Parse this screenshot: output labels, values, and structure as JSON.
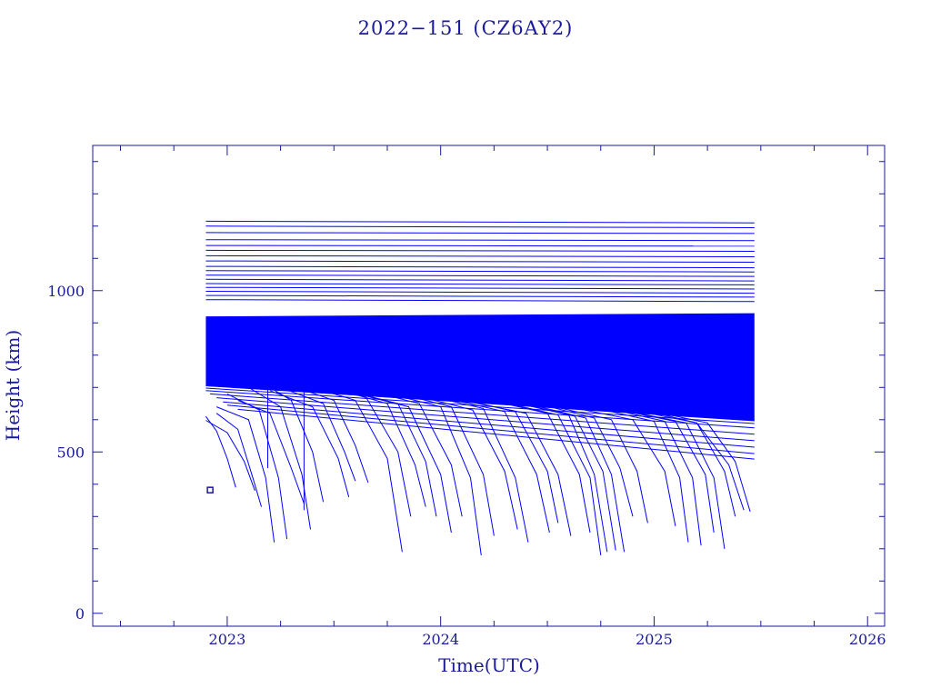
{
  "chart_data": {
    "type": "line",
    "title": "2022−151 (CZ6AY2)",
    "xlabel": "Time(UTC)",
    "ylabel": "Height (km)",
    "xlim": [
      2022.37,
      2026.08
    ],
    "ylim": [
      -40,
      1450
    ],
    "x_ticks": [
      2023,
      2024,
      2025,
      2026
    ],
    "x_tick_labels": [
      "2023",
      "2024",
      "2025",
      "2026"
    ],
    "y_ticks": [
      0,
      500,
      1000
    ],
    "y_tick_labels": [
      "0",
      "500",
      "1000"
    ],
    "grid": false,
    "legend": "none",
    "colors": {
      "data": "#0000ff",
      "axes": "#1a1a9a",
      "background": "#ffffff"
    },
    "data_span": {
      "start": 2022.9,
      "end": 2025.47
    },
    "dense_band_km": [
      595,
      960
    ],
    "series": [
      {
        "x": [
          2022.9,
          2025.47
        ],
        "y": [
          1215,
          1210
        ]
      },
      {
        "x": [
          2022.9,
          2025.47
        ],
        "y": [
          1200,
          1195
        ]
      },
      {
        "x": [
          2022.9,
          2025.47
        ],
        "y": [
          1180,
          1177
        ]
      },
      {
        "x": [
          2022.9,
          2025.47
        ],
        "y": [
          1158,
          1155
        ]
      },
      {
        "x": [
          2022.9,
          2025.47
        ],
        "y": [
          1140,
          1138
        ]
      },
      {
        "x": [
          2022.9,
          2025.47
        ],
        "y": [
          1125,
          1122
        ]
      },
      {
        "x": [
          2022.9,
          2025.47
        ],
        "y": [
          1108,
          1105
        ]
      },
      {
        "x": [
          2022.9,
          2025.47
        ],
        "y": [
          1092,
          1088
        ]
      },
      {
        "x": [
          2022.9,
          2025.47
        ],
        "y": [
          1075,
          1071
        ]
      },
      {
        "x": [
          2022.9,
          2025.47
        ],
        "y": [
          1062,
          1058
        ]
      },
      {
        "x": [
          2022.9,
          2025.47
        ],
        "y": [
          1048,
          1044
        ]
      },
      {
        "x": [
          2022.9,
          2025.47
        ],
        "y": [
          1035,
          1030
        ]
      },
      {
        "x": [
          2022.9,
          2025.47
        ],
        "y": [
          1022,
          1018
        ]
      },
      {
        "x": [
          2022.9,
          2025.47
        ],
        "y": [
          1010,
          1005
        ]
      },
      {
        "x": [
          2022.9,
          2025.47
        ],
        "y": [
          998,
          992
        ]
      },
      {
        "x": [
          2022.9,
          2025.47
        ],
        "y": [
          985,
          980
        ]
      },
      {
        "x": [
          2022.9,
          2025.47
        ],
        "y": [
          972,
          966
        ]
      },
      {
        "x": [
          2022.9,
          2025.47
        ],
        "y": [
          712,
          610
        ]
      },
      {
        "x": [
          2022.9,
          2025.47
        ],
        "y": [
          705,
          600
        ]
      },
      {
        "x": [
          2022.9,
          2025.47
        ],
        "y": [
          698,
          588
        ]
      },
      {
        "x": [
          2022.9,
          2025.47
        ],
        "y": [
          690,
          575
        ]
      },
      {
        "x": [
          2022.92,
          2025.47
        ],
        "y": [
          680,
          555
        ]
      },
      {
        "x": [
          2022.95,
          2025.47
        ],
        "y": [
          668,
          535
        ]
      },
      {
        "x": [
          2022.98,
          2025.47
        ],
        "y": [
          655,
          515
        ]
      },
      {
        "x": [
          2023.0,
          2025.47
        ],
        "y": [
          645,
          495
        ]
      },
      {
        "x": [
          2023.05,
          2025.47
        ],
        "y": [
          632,
          478
        ]
      },
      {
        "x": [
          2022.9,
          2022.95,
          2023.0,
          2023.04
        ],
        "y": [
          610,
          565,
          480,
          390
        ]
      },
      {
        "x": [
          2022.9,
          2023.0,
          2023.08,
          2023.13
        ],
        "y": [
          598,
          560,
          470,
          380
        ]
      },
      {
        "x": [
          2022.95,
          2023.05,
          2023.12,
          2023.16
        ],
        "y": [
          620,
          570,
          420,
          330
        ]
      },
      {
        "x": [
          2022.95,
          2023.1,
          2023.18,
          2023.22
        ],
        "y": [
          640,
          600,
          420,
          220
        ]
      },
      {
        "x": [
          2023.0,
          2023.15,
          2023.24,
          2023.28
        ],
        "y": [
          680,
          630,
          420,
          230
        ]
      },
      {
        "x": [
          2023.05,
          2023.2,
          2023.3,
          2023.36
        ],
        "y": [
          660,
          620,
          450,
          340
        ]
      },
      {
        "x": [
          2023.1,
          2023.25,
          2023.35,
          2023.39
        ],
        "y": [
          700,
          640,
          430,
          260
        ]
      },
      {
        "x": [
          2023.15,
          2023.3,
          2023.4,
          2023.45
        ],
        "y": [
          720,
          660,
          500,
          345
        ]
      },
      {
        "x": [
          2023.2,
          2023.4,
          2023.52,
          2023.57
        ],
        "y": [
          690,
          640,
          480,
          360
        ]
      },
      {
        "x": [
          2023.25,
          2023.45,
          2023.55,
          2023.6
        ],
        "y": [
          700,
          650,
          500,
          410
        ]
      },
      {
        "x": [
          2023.3,
          2023.5,
          2023.6,
          2023.66
        ],
        "y": [
          705,
          660,
          520,
          405
        ]
      },
      {
        "x": [
          2023.35,
          2023.6,
          2023.75,
          2023.82
        ],
        "y": [
          710,
          660,
          480,
          190
        ]
      },
      {
        "x": [
          2023.4,
          2023.65,
          2023.8,
          2023.86
        ],
        "y": [
          715,
          670,
          500,
          300
        ]
      },
      {
        "x": [
          2023.45,
          2023.75,
          2023.88,
          2023.93
        ],
        "y": [
          705,
          650,
          460,
          330
        ]
      },
      {
        "x": [
          2023.5,
          2023.8,
          2023.93,
          2023.98
        ],
        "y": [
          700,
          650,
          470,
          300
        ]
      },
      {
        "x": [
          2023.55,
          2023.85,
          2024.0,
          2024.05
        ],
        "y": [
          690,
          640,
          430,
          250
        ]
      },
      {
        "x": [
          2023.6,
          2023.9,
          2024.05,
          2024.1
        ],
        "y": [
          700,
          650,
          460,
          300
        ]
      },
      {
        "x": [
          2023.7,
          2024.0,
          2024.14,
          2024.19
        ],
        "y": [
          690,
          640,
          420,
          180
        ]
      },
      {
        "x": [
          2023.75,
          2024.05,
          2024.2,
          2024.25
        ],
        "y": [
          690,
          640,
          430,
          240
        ]
      },
      {
        "x": [
          2023.85,
          2024.15,
          2024.3,
          2024.36
        ],
        "y": [
          680,
          630,
          440,
          260
        ]
      },
      {
        "x": [
          2023.9,
          2024.2,
          2024.35,
          2024.41
        ],
        "y": [
          680,
          635,
          420,
          220
        ]
      },
      {
        "x": [
          2024.0,
          2024.3,
          2024.45,
          2024.51
        ],
        "y": [
          670,
          625,
          430,
          250
        ]
      },
      {
        "x": [
          2024.05,
          2024.35,
          2024.5,
          2024.55
        ],
        "y": [
          670,
          625,
          440,
          280
        ]
      },
      {
        "x": [
          2024.1,
          2024.4,
          2024.55,
          2024.61
        ],
        "y": [
          660,
          620,
          430,
          240
        ]
      },
      {
        "x": [
          2024.2,
          2024.5,
          2024.65,
          2024.7
        ],
        "y": [
          665,
          620,
          430,
          250
        ]
      },
      {
        "x": [
          2024.25,
          2024.55,
          2024.7,
          2024.75
        ],
        "y": [
          660,
          615,
          420,
          180
        ]
      },
      {
        "x": [
          2024.3,
          2024.6,
          2024.72,
          2024.78
        ],
        "y": [
          660,
          615,
          430,
          190
        ]
      },
      {
        "x": [
          2024.35,
          2024.63,
          2024.76,
          2024.82
        ],
        "y": [
          655,
          610,
          440,
          195
        ]
      },
      {
        "x": [
          2024.4,
          2024.68,
          2024.8,
          2024.86
        ],
        "y": [
          650,
          605,
          430,
          190
        ]
      },
      {
        "x": [
          2024.45,
          2024.72,
          2024.84,
          2024.9
        ],
        "y": [
          650,
          605,
          450,
          300
        ]
      },
      {
        "x": [
          2024.5,
          2024.8,
          2024.92,
          2024.97
        ],
        "y": [
          645,
          600,
          440,
          280
        ]
      },
      {
        "x": [
          2024.6,
          2024.9,
          2025.05,
          2025.1
        ],
        "y": [
          640,
          600,
          440,
          270
        ]
      },
      {
        "x": [
          2024.7,
          2025.0,
          2025.12,
          2025.16
        ],
        "y": [
          640,
          595,
          420,
          220
        ]
      },
      {
        "x": [
          2024.75,
          2025.05,
          2025.18,
          2025.22
        ],
        "y": [
          640,
          595,
          420,
          210
        ]
      },
      {
        "x": [
          2024.8,
          2025.1,
          2025.24,
          2025.28
        ],
        "y": [
          635,
          595,
          430,
          250
        ]
      },
      {
        "x": [
          2024.85,
          2025.15,
          2025.28,
          2025.33
        ],
        "y": [
          630,
          590,
          420,
          200
        ]
      },
      {
        "x": [
          2024.9,
          2025.2,
          2025.33,
          2025.38
        ],
        "y": [
          630,
          590,
          440,
          300
        ]
      },
      {
        "x": [
          2024.95,
          2025.2,
          2025.35,
          2025.42
        ],
        "y": [
          630,
          590,
          460,
          320
        ]
      },
      {
        "x": [
          2025.0,
          2025.25,
          2025.38,
          2025.45
        ],
        "y": [
          625,
          590,
          470,
          315
        ]
      },
      {
        "x": [
          2023.36,
          2023.36
        ],
        "y": [
          700,
          320
        ]
      },
      {
        "x": [
          2023.19,
          2023.19
        ],
        "y": [
          700,
          450
        ]
      }
    ],
    "annotations": [
      {
        "type": "marker",
        "x": 2022.92,
        "y": 382,
        "symbol": "square"
      }
    ]
  }
}
